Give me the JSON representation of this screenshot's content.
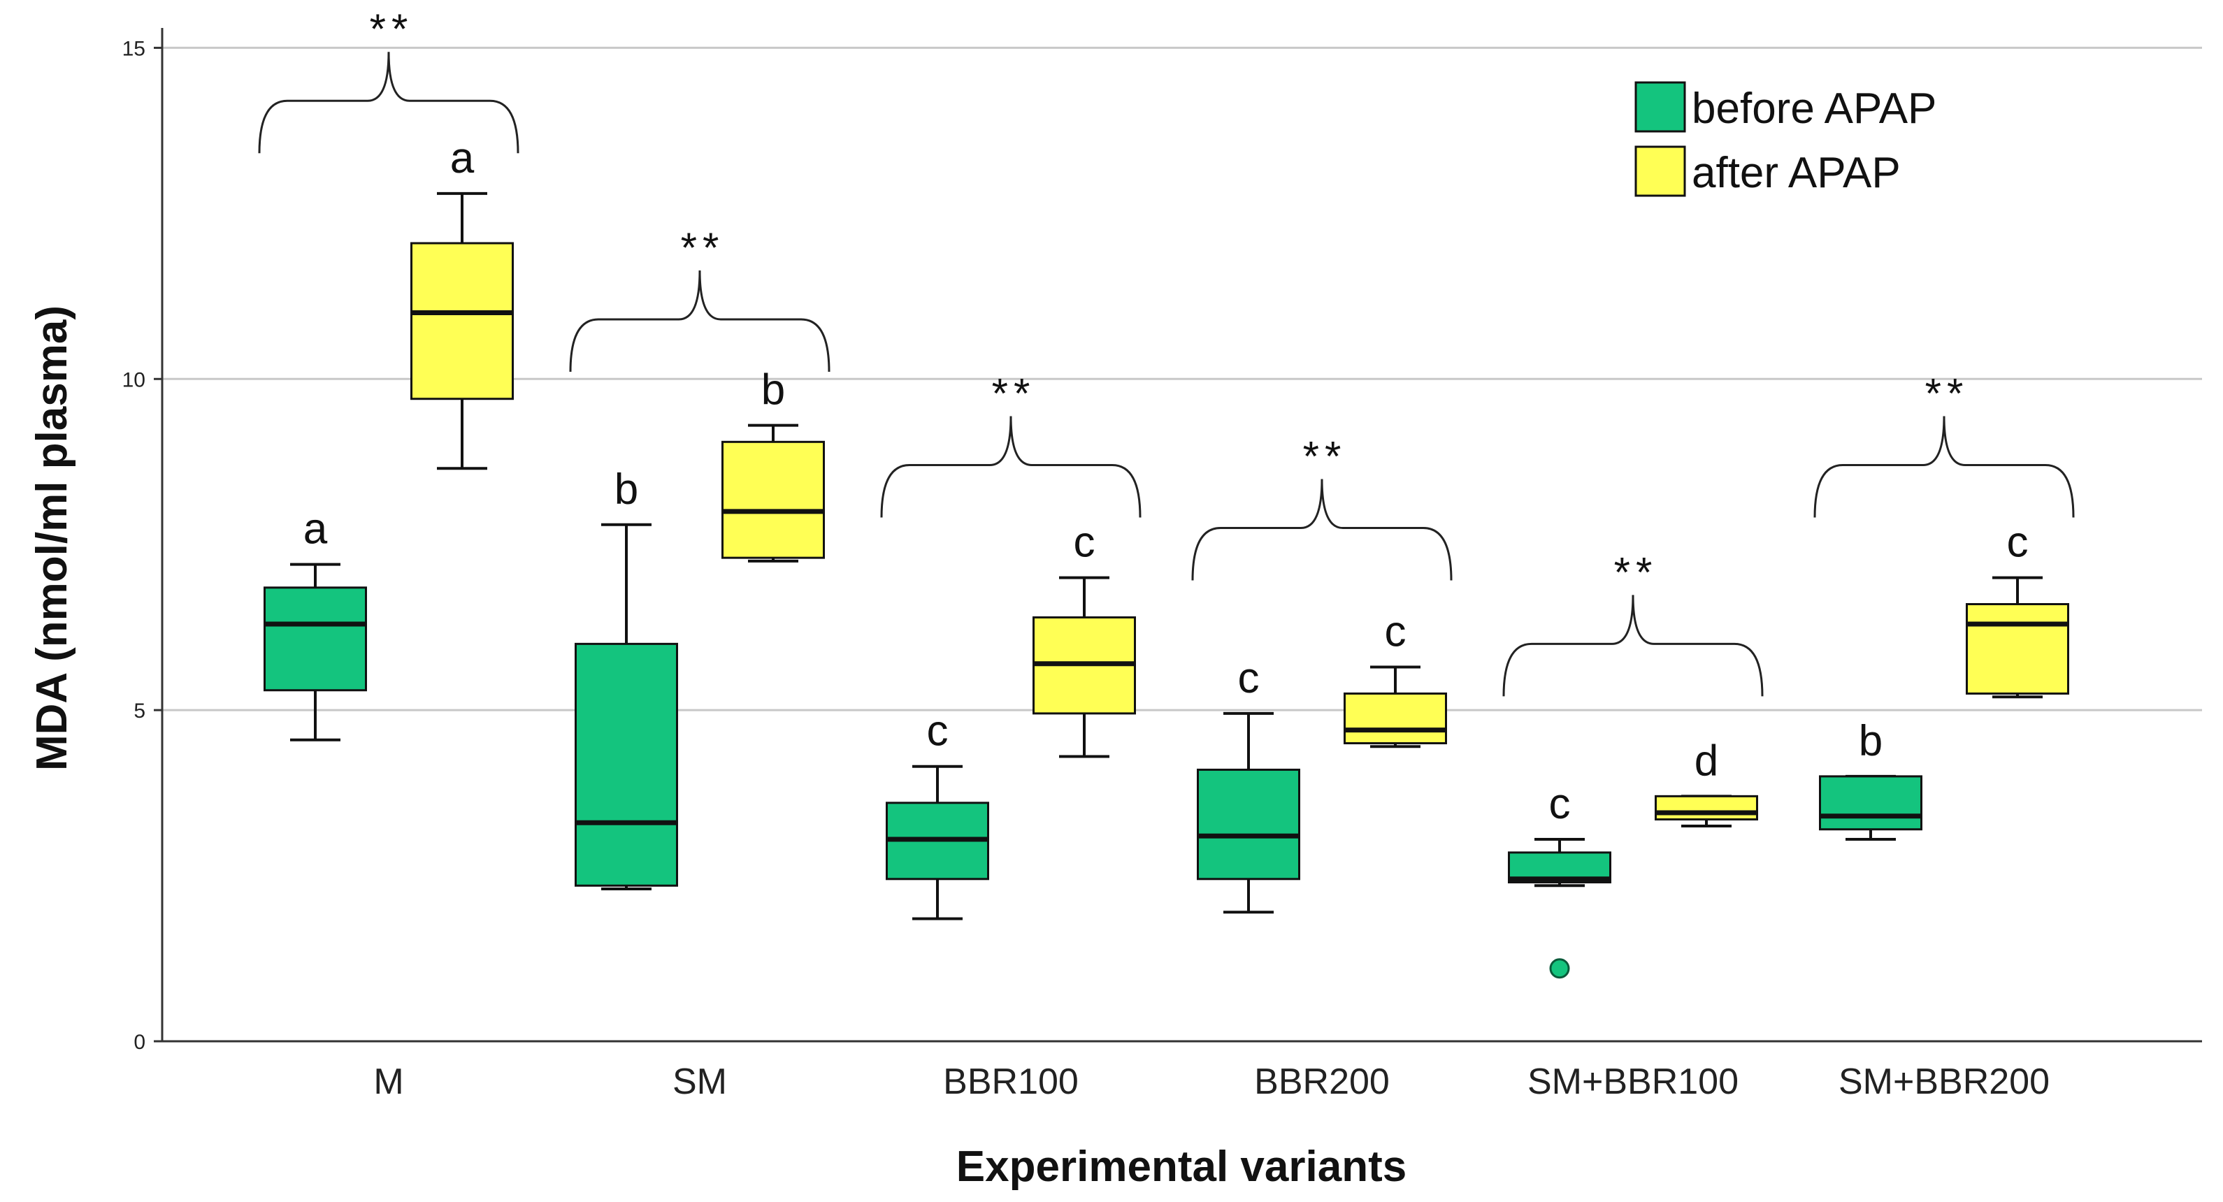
{
  "chart_data": {
    "type": "boxplot",
    "xlabel": "Experimental variants",
    "ylabel": "MDA (nmol/ml plasma)",
    "ylim": [
      0,
      15.3
    ],
    "yticks": [
      0,
      5,
      10,
      15
    ],
    "grid": true,
    "legend_position": "top-right",
    "categories": [
      "M",
      "SM",
      "BBR100",
      "BBR200",
      "SM+BBR100",
      "SM+BBR200"
    ],
    "series": [
      {
        "name": "before APAP",
        "color": "#14c47e",
        "boxes": [
          {
            "min": 4.55,
            "q1": 5.3,
            "median": 6.3,
            "q3": 6.85,
            "max": 7.2,
            "letter": "a"
          },
          {
            "min": 2.3,
            "q1": 2.35,
            "median": 3.3,
            "q3": 6.0,
            "max": 7.8,
            "letter": "b"
          },
          {
            "min": 1.85,
            "q1": 2.45,
            "median": 3.05,
            "q3": 3.6,
            "max": 4.15,
            "letter": "c"
          },
          {
            "min": 1.95,
            "q1": 2.45,
            "median": 3.1,
            "q3": 4.1,
            "max": 4.95,
            "letter": "c"
          },
          {
            "min": 2.35,
            "q1": 2.4,
            "median": 2.45,
            "q3": 2.85,
            "max": 3.05,
            "letter": "c",
            "outliers": [
              1.1
            ]
          },
          {
            "min": 3.05,
            "q1": 3.2,
            "median": 3.4,
            "q3": 4.0,
            "max": 4.0,
            "letter": "b"
          }
        ]
      },
      {
        "name": "after APAP",
        "color": "#ffff55",
        "boxes": [
          {
            "min": 8.65,
            "q1": 9.7,
            "median": 11.0,
            "q3": 12.05,
            "max": 12.8,
            "letter": "a"
          },
          {
            "min": 7.25,
            "q1": 7.3,
            "median": 8.0,
            "q3": 9.05,
            "max": 9.3,
            "letter": "b"
          },
          {
            "min": 4.3,
            "q1": 4.95,
            "median": 5.7,
            "q3": 6.4,
            "max": 7.0,
            "letter": "c"
          },
          {
            "min": 4.45,
            "q1": 4.5,
            "median": 4.7,
            "q3": 5.25,
            "max": 5.65,
            "letter": "c"
          },
          {
            "min": 3.25,
            "q1": 3.35,
            "median": 3.45,
            "q3": 3.7,
            "max": 3.7,
            "letter": "d"
          },
          {
            "min": 5.2,
            "q1": 5.25,
            "median": 6.3,
            "q3": 6.6,
            "max": 7.0,
            "letter": "c"
          }
        ]
      }
    ],
    "significance": [
      {
        "category": "M",
        "label": "**",
        "level": 14.2
      },
      {
        "category": "SM",
        "label": "**",
        "level": 10.9
      },
      {
        "category": "BBR100",
        "label": "**",
        "level": 8.7
      },
      {
        "category": "BBR200",
        "label": "**",
        "level": 7.75
      },
      {
        "category": "SM+BBR100",
        "label": "**",
        "level": 6.0
      },
      {
        "category": "SM+BBR200",
        "label": "**",
        "level": 8.7
      }
    ]
  }
}
